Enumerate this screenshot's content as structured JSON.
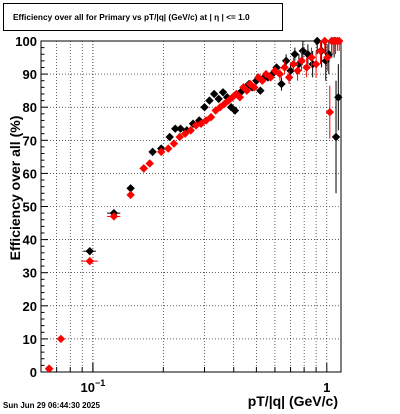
{
  "title": "Efficiency over all for Primary vs pT/|q| (GeV/c) at |   η   | <= 1.0",
  "footer": "Sun Jun 29 06:44:30 2025",
  "chart_data": {
    "type": "scatter",
    "title": "Efficiency over all for Primary vs pT/|q| (GeV/c) at |   η   | <= 1.0",
    "xlabel": "pT/|q| (GeV/c)",
    "ylabel": "Efficiency over all (%)",
    "xscale": "log",
    "xlim": [
      0.06,
      1.15
    ],
    "ylim": [
      0,
      100
    ],
    "xticks": [
      {
        "value": 0.1,
        "label": "10",
        "sup": "−1"
      },
      {
        "value": 1,
        "label": "1"
      }
    ],
    "yticks": [
      0,
      10,
      20,
      30,
      40,
      50,
      60,
      70,
      80,
      90,
      100
    ],
    "grid": true,
    "series": [
      {
        "color": "#000000",
        "points": [
          {
            "x": 0.065,
            "y": 1,
            "xerr": 0.002
          },
          {
            "x": 0.097,
            "y": 36.5,
            "xerr": 0.006,
            "yerr": 0.8
          },
          {
            "x": 0.123,
            "y": 48,
            "xerr": 0.008,
            "yerr": 0.8
          },
          {
            "x": 0.145,
            "y": 55.5,
            "xerr": 0.003
          },
          {
            "x": 0.165,
            "y": 61.5,
            "xerr": 0.003
          },
          {
            "x": 0.18,
            "y": 66.5
          },
          {
            "x": 0.196,
            "y": 67.5
          },
          {
            "x": 0.213,
            "y": 71
          },
          {
            "x": 0.225,
            "y": 73.5
          },
          {
            "x": 0.237,
            "y": 73.5
          },
          {
            "x": 0.252,
            "y": 73
          },
          {
            "x": 0.268,
            "y": 75
          },
          {
            "x": 0.285,
            "y": 76
          },
          {
            "x": 0.3,
            "y": 80
          },
          {
            "x": 0.315,
            "y": 82
          },
          {
            "x": 0.33,
            "y": 84
          },
          {
            "x": 0.345,
            "y": 82.5
          },
          {
            "x": 0.36,
            "y": 84.5
          },
          {
            "x": 0.375,
            "y": 83
          },
          {
            "x": 0.39,
            "y": 80
          },
          {
            "x": 0.405,
            "y": 79
          },
          {
            "x": 0.42,
            "y": 84
          },
          {
            "x": 0.435,
            "y": 85
          },
          {
            "x": 0.45,
            "y": 86
          },
          {
            "x": 0.465,
            "y": 87
          },
          {
            "x": 0.48,
            "y": 86
          },
          {
            "x": 0.5,
            "y": 88
          },
          {
            "x": 0.52,
            "y": 85
          },
          {
            "x": 0.54,
            "y": 89
          },
          {
            "x": 0.56,
            "y": 89
          },
          {
            "x": 0.585,
            "y": 90
          },
          {
            "x": 0.61,
            "y": 92
          },
          {
            "x": 0.64,
            "y": 87,
            "yerr": 2
          },
          {
            "x": 0.67,
            "y": 94,
            "yerr": 2
          },
          {
            "x": 0.7,
            "y": 91,
            "yerr": 2
          },
          {
            "x": 0.73,
            "y": 96,
            "yerr": 2
          },
          {
            "x": 0.76,
            "y": 93,
            "yerr": 3
          },
          {
            "x": 0.79,
            "y": 97,
            "yerr": 3
          },
          {
            "x": 0.83,
            "y": 96,
            "yerr": 3
          },
          {
            "x": 0.87,
            "y": 93,
            "yerr": 4
          },
          {
            "x": 0.91,
            "y": 100,
            "yerr": 4
          },
          {
            "x": 0.95,
            "y": 97,
            "yerr": 5
          },
          {
            "x": 0.99,
            "y": 94,
            "yerr": 6
          },
          {
            "x": 1.02,
            "y": 96,
            "yerr": 6
          },
          {
            "x": 1.05,
            "y": 100,
            "yerr": 5
          },
          {
            "x": 1.075,
            "y": 100,
            "yerr": 5
          },
          {
            "x": 1.095,
            "y": 71,
            "yerr": 17
          },
          {
            "x": 1.12,
            "y": 83,
            "yerr": 10
          }
        ]
      },
      {
        "color": "#ff0000",
        "points": [
          {
            "x": 0.065,
            "y": 1,
            "xerr": 0.002
          },
          {
            "x": 0.073,
            "y": 10,
            "xerr": 0.002
          },
          {
            "x": 0.097,
            "y": 33.5,
            "xerr": 0.008,
            "yerr": 0.8
          },
          {
            "x": 0.123,
            "y": 47,
            "xerr": 0.008,
            "yerr": 0.8
          },
          {
            "x": 0.145,
            "y": 53.5,
            "xerr": 0.003
          },
          {
            "x": 0.165,
            "y": 61.5,
            "xerr": 0.003
          },
          {
            "x": 0.175,
            "y": 63
          },
          {
            "x": 0.196,
            "y": 66.5
          },
          {
            "x": 0.21,
            "y": 67.5
          },
          {
            "x": 0.222,
            "y": 69
          },
          {
            "x": 0.235,
            "y": 71
          },
          {
            "x": 0.248,
            "y": 72
          },
          {
            "x": 0.262,
            "y": 73
          },
          {
            "x": 0.276,
            "y": 74.5
          },
          {
            "x": 0.29,
            "y": 75
          },
          {
            "x": 0.305,
            "y": 76
          },
          {
            "x": 0.32,
            "y": 77
          },
          {
            "x": 0.335,
            "y": 79
          },
          {
            "x": 0.35,
            "y": 80
          },
          {
            "x": 0.365,
            "y": 81
          },
          {
            "x": 0.38,
            "y": 82
          },
          {
            "x": 0.395,
            "y": 83
          },
          {
            "x": 0.41,
            "y": 84
          },
          {
            "x": 0.425,
            "y": 83
          },
          {
            "x": 0.44,
            "y": 86
          },
          {
            "x": 0.455,
            "y": 85
          },
          {
            "x": 0.47,
            "y": 87
          },
          {
            "x": 0.49,
            "y": 86
          },
          {
            "x": 0.51,
            "y": 89
          },
          {
            "x": 0.53,
            "y": 88
          },
          {
            "x": 0.55,
            "y": 90
          },
          {
            "x": 0.575,
            "y": 89
          },
          {
            "x": 0.6,
            "y": 91
          },
          {
            "x": 0.63,
            "y": 90,
            "yerr": 2
          },
          {
            "x": 0.66,
            "y": 92,
            "yerr": 2
          },
          {
            "x": 0.69,
            "y": 89,
            "yerr": 2
          },
          {
            "x": 0.72,
            "y": 93,
            "yerr": 2
          },
          {
            "x": 0.75,
            "y": 91,
            "yerr": 3
          },
          {
            "x": 0.78,
            "y": 94,
            "yerr": 3
          },
          {
            "x": 0.82,
            "y": 92,
            "yerr": 3
          },
          {
            "x": 0.86,
            "y": 95,
            "yerr": 3
          },
          {
            "x": 0.9,
            "y": 93,
            "yerr": 4
          },
          {
            "x": 0.94,
            "y": 97,
            "yerr": 4
          },
          {
            "x": 0.98,
            "y": 100,
            "yerr": 4
          },
          {
            "x": 1.005,
            "y": 95,
            "yerr": 4
          },
          {
            "x": 1.03,
            "y": 78.5,
            "yerr": 8
          },
          {
            "x": 1.05,
            "y": 100,
            "yerr": 4
          },
          {
            "x": 1.07,
            "y": 100,
            "yerr": 4
          },
          {
            "x": 1.09,
            "y": 100,
            "yerr": 4
          },
          {
            "x": 1.11,
            "y": 100,
            "yerr": 3
          },
          {
            "x": 1.13,
            "y": 100,
            "yerr": 3
          }
        ]
      }
    ]
  }
}
